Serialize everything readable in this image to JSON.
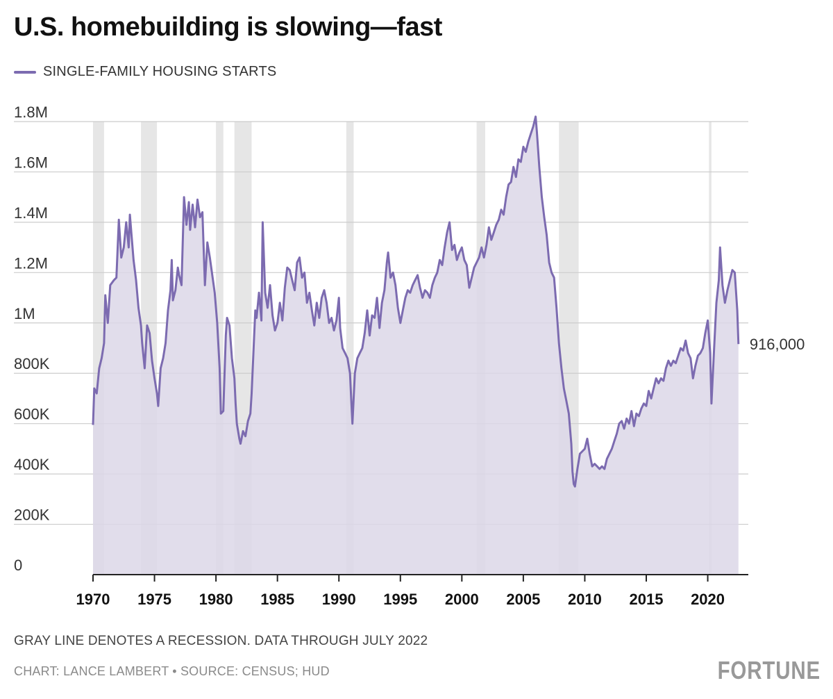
{
  "title": "U.S. homebuilding is slowing—fast",
  "note": "GRAY LINE DENOTES A RECESSION. DATA THROUGH JULY 2022",
  "credit": "CHART: LANCE LAMBERT • SOURCE: CENSUS; HUD",
  "brand": "FORTUNE",
  "colors": {
    "line": "#7c6bb0",
    "area": "#dcd7e8",
    "recession": "#e6e6e6",
    "grid": "#cccccc",
    "axis": "#222222"
  },
  "chart_data": {
    "type": "area",
    "series": [
      {
        "name": "SINGLE-FAMILY HOUSING STARTS",
        "points": [
          [
            1970.0,
            595000
          ],
          [
            1970.1,
            740000
          ],
          [
            1970.3,
            720000
          ],
          [
            1970.5,
            820000
          ],
          [
            1970.7,
            860000
          ],
          [
            1970.9,
            920000
          ],
          [
            1971.0,
            1110000
          ],
          [
            1971.2,
            1000000
          ],
          [
            1971.4,
            1150000
          ],
          [
            1971.7,
            1170000
          ],
          [
            1971.9,
            1180000
          ],
          [
            1972.1,
            1410000
          ],
          [
            1972.3,
            1260000
          ],
          [
            1972.5,
            1300000
          ],
          [
            1972.7,
            1400000
          ],
          [
            1972.9,
            1300000
          ],
          [
            1973.0,
            1430000
          ],
          [
            1973.3,
            1250000
          ],
          [
            1973.5,
            1170000
          ],
          [
            1973.7,
            1060000
          ],
          [
            1973.9,
            990000
          ],
          [
            1974.0,
            920000
          ],
          [
            1974.2,
            820000
          ],
          [
            1974.4,
            990000
          ],
          [
            1974.6,
            960000
          ],
          [
            1974.8,
            850000
          ],
          [
            1975.0,
            780000
          ],
          [
            1975.2,
            720000
          ],
          [
            1975.3,
            670000
          ],
          [
            1975.5,
            820000
          ],
          [
            1975.7,
            860000
          ],
          [
            1975.9,
            920000
          ],
          [
            1976.1,
            1050000
          ],
          [
            1976.3,
            1130000
          ],
          [
            1976.4,
            1250000
          ],
          [
            1976.5,
            1090000
          ],
          [
            1976.7,
            1130000
          ],
          [
            1976.9,
            1220000
          ],
          [
            1977.0,
            1190000
          ],
          [
            1977.2,
            1150000
          ],
          [
            1977.4,
            1500000
          ],
          [
            1977.6,
            1390000
          ],
          [
            1977.8,
            1480000
          ],
          [
            1977.9,
            1370000
          ],
          [
            1978.1,
            1470000
          ],
          [
            1978.3,
            1380000
          ],
          [
            1978.5,
            1490000
          ],
          [
            1978.7,
            1420000
          ],
          [
            1978.9,
            1440000
          ],
          [
            1979.1,
            1150000
          ],
          [
            1979.3,
            1320000
          ],
          [
            1979.5,
            1260000
          ],
          [
            1979.7,
            1190000
          ],
          [
            1979.9,
            1120000
          ],
          [
            1980.1,
            1000000
          ],
          [
            1980.3,
            820000
          ],
          [
            1980.4,
            640000
          ],
          [
            1980.6,
            650000
          ],
          [
            1980.8,
            950000
          ],
          [
            1980.9,
            1020000
          ],
          [
            1981.1,
            990000
          ],
          [
            1981.3,
            860000
          ],
          [
            1981.5,
            780000
          ],
          [
            1981.6,
            680000
          ],
          [
            1981.7,
            600000
          ],
          [
            1981.9,
            540000
          ],
          [
            1982.0,
            520000
          ],
          [
            1982.2,
            570000
          ],
          [
            1982.4,
            550000
          ],
          [
            1982.6,
            610000
          ],
          [
            1982.8,
            640000
          ],
          [
            1982.9,
            720000
          ],
          [
            1983.1,
            940000
          ],
          [
            1983.2,
            1050000
          ],
          [
            1983.3,
            1020000
          ],
          [
            1983.5,
            1120000
          ],
          [
            1983.7,
            1010000
          ],
          [
            1983.8,
            1400000
          ],
          [
            1984.0,
            1120000
          ],
          [
            1984.2,
            1060000
          ],
          [
            1984.4,
            1150000
          ],
          [
            1984.6,
            1030000
          ],
          [
            1984.8,
            970000
          ],
          [
            1985.0,
            1000000
          ],
          [
            1985.2,
            1080000
          ],
          [
            1985.4,
            1010000
          ],
          [
            1985.6,
            1140000
          ],
          [
            1985.8,
            1220000
          ],
          [
            1986.0,
            1210000
          ],
          [
            1986.2,
            1170000
          ],
          [
            1986.4,
            1130000
          ],
          [
            1986.6,
            1240000
          ],
          [
            1986.8,
            1260000
          ],
          [
            1987.0,
            1180000
          ],
          [
            1987.2,
            1200000
          ],
          [
            1987.4,
            1080000
          ],
          [
            1987.6,
            1120000
          ],
          [
            1987.8,
            1050000
          ],
          [
            1988.0,
            990000
          ],
          [
            1988.2,
            1080000
          ],
          [
            1988.4,
            1020000
          ],
          [
            1988.6,
            1100000
          ],
          [
            1988.8,
            1130000
          ],
          [
            1989.0,
            1080000
          ],
          [
            1989.2,
            1000000
          ],
          [
            1989.4,
            1020000
          ],
          [
            1989.6,
            970000
          ],
          [
            1989.8,
            1010000
          ],
          [
            1990.0,
            1100000
          ],
          [
            1990.1,
            980000
          ],
          [
            1990.3,
            900000
          ],
          [
            1990.5,
            880000
          ],
          [
            1990.7,
            860000
          ],
          [
            1990.9,
            800000
          ],
          [
            1991.0,
            700000
          ],
          [
            1991.1,
            600000
          ],
          [
            1991.3,
            800000
          ],
          [
            1991.5,
            860000
          ],
          [
            1991.7,
            880000
          ],
          [
            1991.9,
            900000
          ],
          [
            1992.1,
            960000
          ],
          [
            1992.3,
            1050000
          ],
          [
            1992.5,
            950000
          ],
          [
            1992.7,
            1030000
          ],
          [
            1992.9,
            1020000
          ],
          [
            1993.1,
            1100000
          ],
          [
            1993.3,
            980000
          ],
          [
            1993.5,
            1080000
          ],
          [
            1993.7,
            1130000
          ],
          [
            1993.9,
            1240000
          ],
          [
            1994.0,
            1280000
          ],
          [
            1994.2,
            1180000
          ],
          [
            1994.4,
            1200000
          ],
          [
            1994.6,
            1150000
          ],
          [
            1994.8,
            1060000
          ],
          [
            1995.0,
            1000000
          ],
          [
            1995.2,
            1050000
          ],
          [
            1995.4,
            1100000
          ],
          [
            1995.6,
            1130000
          ],
          [
            1995.8,
            1120000
          ],
          [
            1996.0,
            1150000
          ],
          [
            1996.2,
            1170000
          ],
          [
            1996.4,
            1190000
          ],
          [
            1996.6,
            1140000
          ],
          [
            1996.8,
            1100000
          ],
          [
            1997.0,
            1130000
          ],
          [
            1997.2,
            1120000
          ],
          [
            1997.4,
            1100000
          ],
          [
            1997.6,
            1150000
          ],
          [
            1997.8,
            1180000
          ],
          [
            1998.0,
            1200000
          ],
          [
            1998.2,
            1250000
          ],
          [
            1998.4,
            1230000
          ],
          [
            1998.6,
            1300000
          ],
          [
            1998.8,
            1360000
          ],
          [
            1999.0,
            1400000
          ],
          [
            1999.2,
            1290000
          ],
          [
            1999.4,
            1310000
          ],
          [
            1999.6,
            1250000
          ],
          [
            1999.8,
            1280000
          ],
          [
            2000.0,
            1300000
          ],
          [
            2000.2,
            1250000
          ],
          [
            2000.4,
            1230000
          ],
          [
            2000.6,
            1140000
          ],
          [
            2000.8,
            1180000
          ],
          [
            2001.0,
            1220000
          ],
          [
            2001.2,
            1240000
          ],
          [
            2001.4,
            1260000
          ],
          [
            2001.6,
            1300000
          ],
          [
            2001.8,
            1260000
          ],
          [
            2002.0,
            1310000
          ],
          [
            2002.2,
            1380000
          ],
          [
            2002.4,
            1330000
          ],
          [
            2002.6,
            1360000
          ],
          [
            2002.8,
            1390000
          ],
          [
            2003.0,
            1410000
          ],
          [
            2003.2,
            1450000
          ],
          [
            2003.4,
            1430000
          ],
          [
            2003.6,
            1500000
          ],
          [
            2003.8,
            1550000
          ],
          [
            2004.0,
            1560000
          ],
          [
            2004.2,
            1620000
          ],
          [
            2004.4,
            1580000
          ],
          [
            2004.6,
            1650000
          ],
          [
            2004.8,
            1640000
          ],
          [
            2005.0,
            1700000
          ],
          [
            2005.2,
            1680000
          ],
          [
            2005.4,
            1720000
          ],
          [
            2005.6,
            1750000
          ],
          [
            2005.8,
            1780000
          ],
          [
            2006.0,
            1820000
          ],
          [
            2006.1,
            1760000
          ],
          [
            2006.3,
            1620000
          ],
          [
            2006.5,
            1500000
          ],
          [
            2006.7,
            1420000
          ],
          [
            2006.9,
            1350000
          ],
          [
            2007.1,
            1240000
          ],
          [
            2007.3,
            1200000
          ],
          [
            2007.5,
            1180000
          ],
          [
            2007.7,
            1060000
          ],
          [
            2007.9,
            920000
          ],
          [
            2008.1,
            820000
          ],
          [
            2008.3,
            740000
          ],
          [
            2008.5,
            690000
          ],
          [
            2008.7,
            640000
          ],
          [
            2008.9,
            520000
          ],
          [
            2009.0,
            410000
          ],
          [
            2009.1,
            360000
          ],
          [
            2009.2,
            350000
          ],
          [
            2009.4,
            420000
          ],
          [
            2009.6,
            480000
          ],
          [
            2009.8,
            490000
          ],
          [
            2010.0,
            500000
          ],
          [
            2010.2,
            540000
          ],
          [
            2010.4,
            480000
          ],
          [
            2010.6,
            430000
          ],
          [
            2010.8,
            440000
          ],
          [
            2011.0,
            430000
          ],
          [
            2011.2,
            420000
          ],
          [
            2011.4,
            430000
          ],
          [
            2011.6,
            420000
          ],
          [
            2011.8,
            460000
          ],
          [
            2012.0,
            480000
          ],
          [
            2012.2,
            500000
          ],
          [
            2012.4,
            530000
          ],
          [
            2012.6,
            560000
          ],
          [
            2012.8,
            600000
          ],
          [
            2013.0,
            610000
          ],
          [
            2013.2,
            580000
          ],
          [
            2013.4,
            620000
          ],
          [
            2013.6,
            600000
          ],
          [
            2013.8,
            650000
          ],
          [
            2014.0,
            590000
          ],
          [
            2014.2,
            640000
          ],
          [
            2014.4,
            630000
          ],
          [
            2014.6,
            660000
          ],
          [
            2014.8,
            680000
          ],
          [
            2015.0,
            670000
          ],
          [
            2015.2,
            730000
          ],
          [
            2015.4,
            700000
          ],
          [
            2015.6,
            740000
          ],
          [
            2015.8,
            780000
          ],
          [
            2016.0,
            760000
          ],
          [
            2016.2,
            780000
          ],
          [
            2016.4,
            770000
          ],
          [
            2016.6,
            820000
          ],
          [
            2016.8,
            850000
          ],
          [
            2017.0,
            830000
          ],
          [
            2017.2,
            850000
          ],
          [
            2017.4,
            840000
          ],
          [
            2017.6,
            870000
          ],
          [
            2017.8,
            900000
          ],
          [
            2018.0,
            890000
          ],
          [
            2018.2,
            930000
          ],
          [
            2018.4,
            880000
          ],
          [
            2018.6,
            860000
          ],
          [
            2018.8,
            780000
          ],
          [
            2019.0,
            830000
          ],
          [
            2019.2,
            870000
          ],
          [
            2019.4,
            880000
          ],
          [
            2019.6,
            900000
          ],
          [
            2019.8,
            960000
          ],
          [
            2020.0,
            1010000
          ],
          [
            2020.2,
            880000
          ],
          [
            2020.3,
            680000
          ],
          [
            2020.5,
            880000
          ],
          [
            2020.7,
            1080000
          ],
          [
            2020.9,
            1170000
          ],
          [
            2021.0,
            1300000
          ],
          [
            2021.2,
            1150000
          ],
          [
            2021.4,
            1080000
          ],
          [
            2021.6,
            1130000
          ],
          [
            2021.8,
            1170000
          ],
          [
            2022.0,
            1210000
          ],
          [
            2022.2,
            1200000
          ],
          [
            2022.4,
            1050000
          ],
          [
            2022.5,
            916000
          ]
        ]
      }
    ],
    "x_ticks": [
      "1970",
      "1975",
      "1980",
      "1985",
      "1990",
      "1995",
      "2000",
      "2005",
      "2010",
      "2015",
      "2020"
    ],
    "y_ticks": [
      {
        "value": 0,
        "label": "0"
      },
      {
        "value": 200000,
        "label": "200K"
      },
      {
        "value": 400000,
        "label": "400K"
      },
      {
        "value": 600000,
        "label": "600K"
      },
      {
        "value": 800000,
        "label": "800K"
      },
      {
        "value": 1000000,
        "label": "1M"
      },
      {
        "value": 1200000,
        "label": "1.2M"
      },
      {
        "value": 1400000,
        "label": "1.4M"
      },
      {
        "value": 1600000,
        "label": "1.6M"
      },
      {
        "value": 1800000,
        "label": "1.8M"
      }
    ],
    "xlim": [
      1970,
      2023.3
    ],
    "ylim": [
      0,
      1800000
    ],
    "recessions": [
      [
        1970.0,
        1970.9
      ],
      [
        1973.9,
        1975.2
      ],
      [
        1980.0,
        1980.6
      ],
      [
        1981.5,
        1982.9
      ],
      [
        1990.6,
        1991.2
      ],
      [
        2001.2,
        2001.9
      ],
      [
        2007.9,
        2009.5
      ],
      [
        2020.1,
        2020.3
      ]
    ],
    "end_label": "916,000",
    "grid": true,
    "legend_position": "top-left"
  }
}
